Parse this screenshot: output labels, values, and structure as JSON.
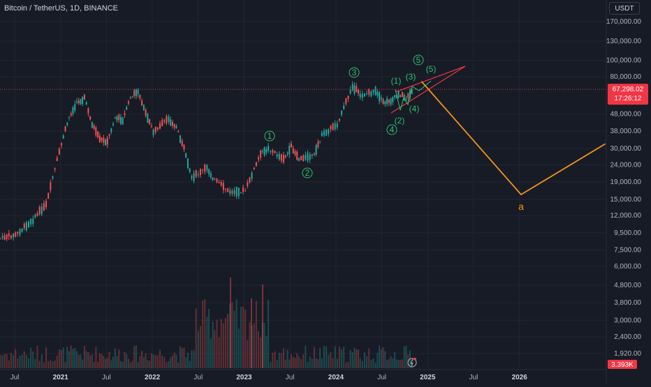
{
  "header": {
    "symbol": "Bitcoin / TetherUS, 1D, BINANCE",
    "currency": "USDT"
  },
  "price_axis": {
    "labels": [
      "170,000.00",
      "130,000.00",
      "100,000.00",
      "80,000.00",
      "48,000.00",
      "38,000.00",
      "30,000.00",
      "24,000.00",
      "19,000.00",
      "15,000.00",
      "12,000.00",
      "9,500.00",
      "7,500.00",
      "6,000.00",
      "4,800.00",
      "3,800.00",
      "3,000.00",
      "2,400.00",
      "1,920.00"
    ],
    "current_price": "67,298.02",
    "countdown": "17:26:12",
    "volume_label": "3.393K",
    "colors": {
      "current": "#f23645",
      "volume": "#f23645"
    }
  },
  "time_axis": {
    "labels": [
      "Jul",
      "2021",
      "Jul",
      "2022",
      "Jul",
      "2023",
      "Jul",
      "2024",
      "Jul",
      "2025",
      "Jul",
      "2026"
    ]
  },
  "chart_data": {
    "type": "line",
    "title": "Bitcoin / TetherUS, 1D, BINANCE",
    "scale": "log",
    "series": [
      {
        "x": [
          "2020-05",
          "2020-07",
          "2020-09",
          "2020-11",
          "2021-01",
          "2021-02",
          "2021-03",
          "2021-04",
          "2021-05",
          "2021-06",
          "2021-07",
          "2021-08",
          "2021-09",
          "2021-10",
          "2021-11",
          "2021-12",
          "2022-01",
          "2022-03",
          "2022-04",
          "2022-05",
          "2022-06",
          "2022-08",
          "2022-09",
          "2022-11",
          "2023-01",
          "2023-03",
          "2023-04",
          "2023-06",
          "2023-07",
          "2023-08",
          "2023-10",
          "2023-11",
          "2024-01",
          "2024-03",
          "2024-04",
          "2024-06",
          "2024-07",
          "2024-08",
          "2024-09",
          "2024-10",
          "2024-11"
        ],
        "values": [
          8800,
          9200,
          11000,
          14000,
          32000,
          46000,
          56000,
          60000,
          42000,
          34000,
          33000,
          46000,
          44000,
          60000,
          66000,
          48000,
          38000,
          45000,
          40000,
          30000,
          20000,
          23000,
          19500,
          16500,
          16800,
          28000,
          30000,
          26000,
          30500,
          26000,
          27500,
          36000,
          42000,
          70000,
          62000,
          66000,
          56000,
          58000,
          63000,
          60000,
          67298
        ]
      }
    ],
    "annotations": {
      "waves_main": [
        "1",
        "2",
        "3",
        "4",
        "5"
      ],
      "waves_sub": [
        "(1)",
        "(2)",
        "(3)",
        "(4)",
        "(5)"
      ],
      "projection_label": "a",
      "projection": [
        {
          "x": "2024-12",
          "y": 75000
        },
        {
          "x": "2026-01",
          "y": 16000
        },
        {
          "x": "2026-12",
          "y": 32000
        }
      ]
    },
    "colors": {
      "up": "#26a69a",
      "down": "#ef5350",
      "projection": "#f7931a",
      "wedge": "#f23645",
      "waves": "#2fbf71"
    }
  }
}
